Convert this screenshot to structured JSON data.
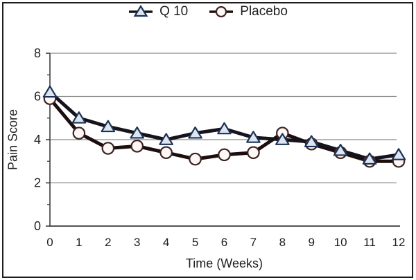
{
  "figure": {
    "legend": [
      {
        "label": "Q 10",
        "marker": "triangle-marker-icon"
      },
      {
        "label": "Placebo",
        "marker": "circle-marker-icon"
      }
    ],
    "colors": {
      "q10_line": "#16131c",
      "q10_marker_fill": "#dde6f0",
      "q10_marker_stroke": "#1c3254",
      "placebo_line": "#1c0e0e",
      "placebo_marker_fill": "#fdf7f5",
      "placebo_marker_stroke": "#3c2222",
      "grid": "#8a8a8a",
      "axis": "#3c3c3c",
      "text": "#1f1f1f",
      "frame_border": "#1e1e1e"
    }
  },
  "chart_data": {
    "type": "line",
    "title": "",
    "xlabel": "Time (Weeks)",
    "ylabel": "Pain Score",
    "x": [
      0,
      1,
      2,
      3,
      4,
      5,
      6,
      7,
      8,
      9,
      10,
      11,
      12
    ],
    "series": [
      {
        "name": "Q 10",
        "marker": "triangle",
        "values": [
          6.2,
          5.0,
          4.6,
          4.3,
          4.0,
          4.3,
          4.5,
          4.1,
          4.0,
          3.9,
          3.5,
          3.1,
          3.3
        ]
      },
      {
        "name": "Placebo",
        "marker": "circle",
        "values": [
          5.9,
          4.3,
          3.6,
          3.7,
          3.4,
          3.1,
          3.3,
          3.4,
          4.3,
          3.8,
          3.4,
          3.0,
          3.0
        ]
      }
    ],
    "xlim": [
      0,
      12
    ],
    "ylim": [
      0,
      8
    ],
    "xticks": [
      0,
      1,
      2,
      3,
      4,
      5,
      6,
      7,
      8,
      9,
      10,
      11,
      12
    ],
    "yticks": [
      0,
      2,
      4,
      6,
      8
    ],
    "yticks_minor": [
      1,
      3,
      5,
      7
    ],
    "grid": "horizontal",
    "legend_position": "top-center"
  }
}
